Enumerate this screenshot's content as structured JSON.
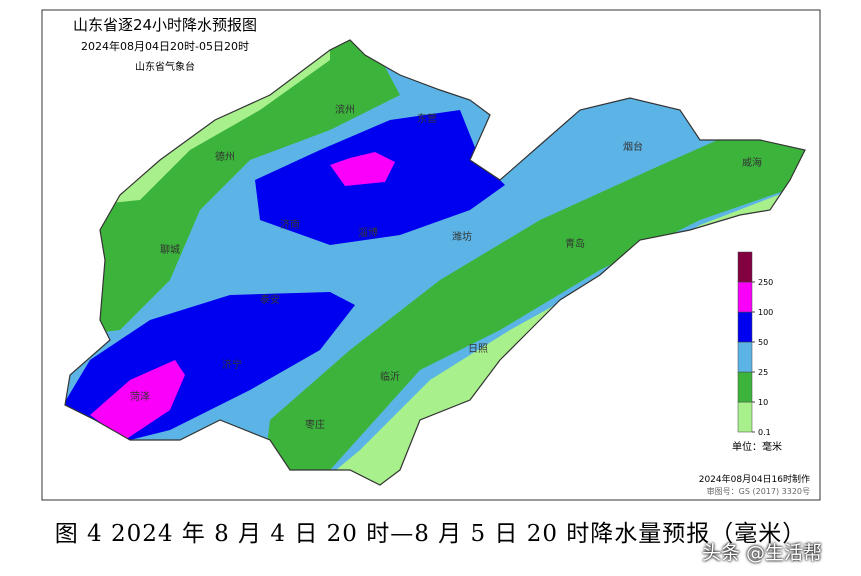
{
  "header": {
    "title": "山东省逐24小时降水预报图",
    "period": "2024年08月04日20时-05日20时",
    "issuer": "山东省气象台"
  },
  "cities": [
    "滨州",
    "东营",
    "德州",
    "聊城",
    "济南",
    "淄博",
    "潍坊",
    "烟台",
    "威海",
    "青岛",
    "泰安",
    "济宁",
    "菏泽",
    "临沂",
    "日照",
    "枣庄"
  ],
  "legend": {
    "levels": [
      0.1,
      10,
      25,
      50,
      100,
      250
    ],
    "colors": [
      "#a8f08c",
      "#3cb43c",
      "#5cb4e6",
      "#0000f0",
      "#fa00fa",
      "#820040"
    ],
    "unit": "单位：毫米"
  },
  "footer": {
    "made": "2024年08月04日16时制作",
    "approval": "审图号：GS (2017) 3320号"
  },
  "caption": "图 4  2024 年 8 月 4 日 20 时—8 月 5 日 20 时降水量预报（毫米）",
  "watermark": "头条 @生活帮"
}
